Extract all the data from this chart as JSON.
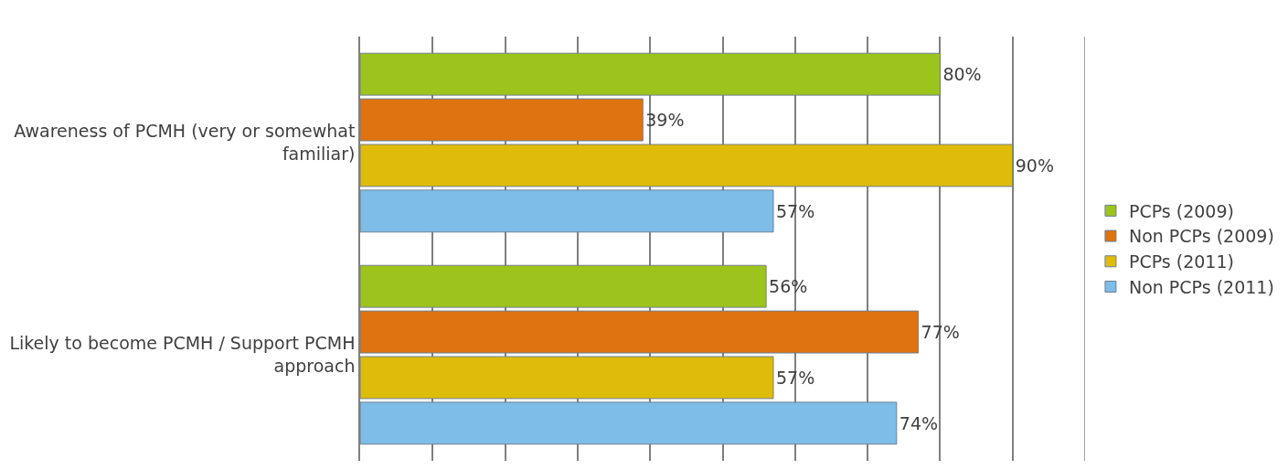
{
  "chart_data": {
    "type": "bar",
    "orientation": "horizontal",
    "categories": [
      "Awareness of PCMH (very or somewhat familiar)",
      "Likely to become PCMH / Support PCMH approach"
    ],
    "series": [
      {
        "name": "PCPs (2009)",
        "color": "#9dc41c",
        "values": [
          80,
          56
        ],
        "value_labels": [
          "80%",
          "56%"
        ]
      },
      {
        "name": "Non PCPs (2009)",
        "color": "#de7310",
        "values": [
          39,
          77
        ],
        "value_labels": [
          "39%",
          "77%"
        ]
      },
      {
        "name": "PCPs (2011)",
        "color": "#e0bc0a",
        "values": [
          90,
          57
        ],
        "value_labels": [
          "90%",
          "57%"
        ]
      },
      {
        "name": "Non PCPs (2011)",
        "color": "#7dbde8",
        "values": [
          57,
          74
        ],
        "value_labels": [
          "57%",
          "74%"
        ]
      }
    ],
    "xlim": [
      0,
      100
    ],
    "xticks": [
      {
        "value": 0,
        "label": null
      },
      {
        "value": 10,
        "label": null
      },
      {
        "value": 20,
        "label": null
      },
      {
        "value": 30,
        "label": null
      },
      {
        "value": 40,
        "label": null
      },
      {
        "value": 50,
        "label": null
      },
      {
        "value": 60,
        "label": null
      },
      {
        "value": 70,
        "label": null
      },
      {
        "value": 80,
        "label": null
      },
      {
        "value": 90,
        "label": null
      },
      {
        "value": 100,
        "label": null
      }
    ],
    "tick_labels": "y",
    "grid": "x",
    "legend": "right"
  }
}
